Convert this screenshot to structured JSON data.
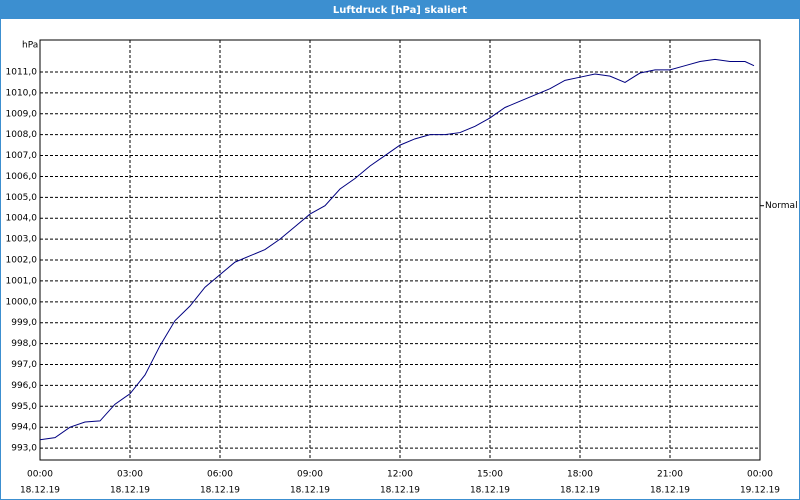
{
  "chart_data": {
    "type": "line",
    "title": "Luftdruck [hPa] skaliert",
    "y_label": "hPa",
    "annotation": {
      "text": "Normal",
      "y": 1004.6
    },
    "x": [
      0,
      0.5,
      1,
      1.5,
      2,
      2.5,
      3,
      3.5,
      4,
      4.5,
      5,
      5.5,
      6,
      6.5,
      7,
      7.5,
      8,
      8.5,
      9,
      9.5,
      10,
      10.5,
      11,
      11.5,
      12,
      12.5,
      13,
      13.5,
      14,
      14.5,
      15,
      15.5,
      16,
      16.5,
      17,
      17.5,
      18,
      18.5,
      19,
      19.5,
      20,
      20.5,
      21,
      21.5,
      22,
      22.5,
      23,
      23.5,
      23.8
    ],
    "series": [
      {
        "name": "Luftdruck",
        "color": "#000080",
        "values": [
          993.4,
          993.5,
          994.0,
          994.25,
          994.3,
          995.1,
          995.6,
          996.5,
          997.9,
          999.1,
          999.8,
          1000.7,
          1001.3,
          1001.9,
          1002.2,
          1002.5,
          1003.0,
          1003.6,
          1004.2,
          1004.6,
          1005.4,
          1005.9,
          1006.5,
          1007.0,
          1007.5,
          1007.8,
          1008.0,
          1008.0,
          1008.1,
          1008.4,
          1008.8,
          1009.3,
          1009.6,
          1009.9,
          1010.2,
          1010.6,
          1010.75,
          1010.9,
          1010.8,
          1010.5,
          1010.95,
          1011.1,
          1011.1,
          1011.3,
          1011.5,
          1011.6,
          1011.5,
          1011.5,
          1011.3
        ]
      }
    ],
    "xlim": [
      0,
      24
    ],
    "xticks": [
      {
        "value": 0,
        "label": "00:00"
      },
      {
        "value": 3,
        "label": "03:00"
      },
      {
        "value": 6,
        "label": "06:00"
      },
      {
        "value": 9,
        "label": "09:00"
      },
      {
        "value": 12,
        "label": "12:00"
      },
      {
        "value": 15,
        "label": "15:00"
      },
      {
        "value": 18,
        "label": "18:00"
      },
      {
        "value": 21,
        "label": "21:00"
      },
      {
        "value": 24,
        "label": "00:00"
      }
    ],
    "xtick_dates": [
      "18.12.19",
      "18.12.19",
      "18.12.19",
      "18.12.19",
      "18.12.19",
      "18.12.19",
      "18.12.19",
      "18.12.19",
      "19.12.19"
    ],
    "ylim": [
      992.43,
      1012.53
    ],
    "yticks": [
      {
        "value": 993,
        "label": "993,0"
      },
      {
        "value": 994,
        "label": "994,0"
      },
      {
        "value": 995,
        "label": "995,0"
      },
      {
        "value": 996,
        "label": "996,0"
      },
      {
        "value": 997,
        "label": "997,0"
      },
      {
        "value": 998,
        "label": "998,0"
      },
      {
        "value": 999,
        "label": "999,0"
      },
      {
        "value": 1000,
        "label": "1000,0"
      },
      {
        "value": 1001,
        "label": "1001,0"
      },
      {
        "value": 1002,
        "label": "1002,0"
      },
      {
        "value": 1003,
        "label": "1003,0"
      },
      {
        "value": 1004,
        "label": "1004,0"
      },
      {
        "value": 1005,
        "label": "1005,0"
      },
      {
        "value": 1006,
        "label": "1006,0"
      },
      {
        "value": 1007,
        "label": "1007,0"
      },
      {
        "value": 1008,
        "label": "1008,0"
      },
      {
        "value": 1009,
        "label": "1009,0"
      },
      {
        "value": 1010,
        "label": "1010,0"
      },
      {
        "value": 1011,
        "label": "1011,0"
      }
    ],
    "grid": true
  }
}
